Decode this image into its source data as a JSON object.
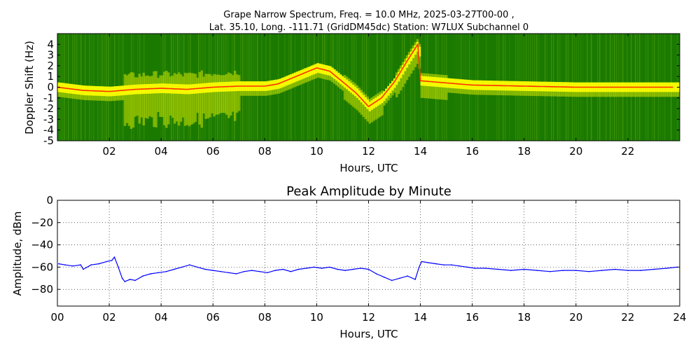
{
  "figure": {
    "title_line1": "Grape Narrow Spectrum, Freq. = 10.0 MHz, 2025-03-27T00-00 ,",
    "title_line2": "Lat.  35.10, Long. -111.71 (GridDM45dc) Station: W7LUX Subchannel 0"
  },
  "chart_data": [
    {
      "type": "heatmap",
      "title": "Grape Narrow Spectrum, Freq. = 10.0 MHz, 2025-03-27T00-00 , Lat.  35.10, Long. -111.71 (GridDM45dc) Station: W7LUX Subchannel 0",
      "xlabel": "Hours, UTC",
      "ylabel": "Doppler Shift (Hz)",
      "xlim": [
        0,
        24
      ],
      "ylim": [
        -5,
        5
      ],
      "xtick_values": [
        2,
        4,
        6,
        8,
        10,
        12,
        14,
        16,
        18,
        20,
        22
      ],
      "xtick_labels": [
        "02",
        "04",
        "06",
        "08",
        "10",
        "12",
        "14",
        "16",
        "18",
        "20",
        "22"
      ],
      "ytick_values": [
        4,
        3,
        2,
        1,
        0,
        -1,
        -2,
        -3,
        -4,
        -5
      ],
      "ytick_labels": [
        "4",
        "3",
        "2",
        "1",
        "0",
        "-1",
        "-2",
        "-3",
        "-4",
        "-5"
      ],
      "colors": [
        "#1a7a00",
        "#4a9a0a",
        "#c8e000",
        "#ffff00",
        "#ff3000"
      ],
      "grid": false,
      "peak_doppler_trace": {
        "hours": [
          0,
          1,
          2,
          3,
          4,
          5,
          6,
          7,
          8,
          8.5,
          9,
          9.5,
          10,
          10.5,
          11,
          11.5,
          12,
          12.5,
          13,
          13.5,
          13.9,
          14,
          15,
          16,
          18,
          20,
          22,
          23.8
        ],
        "doppler_hz": [
          0,
          -0.3,
          -0.4,
          -0.2,
          -0.1,
          -0.2,
          0,
          0.1,
          0.1,
          0.3,
          0.8,
          1.3,
          1.8,
          1.5,
          0.5,
          -0.5,
          -1.8,
          -1,
          0.5,
          2.5,
          4,
          0.6,
          0.4,
          0.2,
          0.1,
          0,
          0,
          0
        ]
      }
    },
    {
      "type": "line",
      "title": "Peak Amplitude by Minute",
      "xlabel": "Hours, UTC",
      "ylabel": "Amplitude, dBm",
      "xlim": [
        0,
        24
      ],
      "ylim": [
        -95,
        0
      ],
      "xtick_values": [
        0,
        2,
        4,
        6,
        8,
        10,
        12,
        14,
        16,
        18,
        20,
        22,
        24
      ],
      "xtick_labels": [
        "00",
        "02",
        "04",
        "06",
        "08",
        "10",
        "12",
        "14",
        "16",
        "18",
        "20",
        "22",
        "24"
      ],
      "ytick_values": [
        0,
        -20,
        -40,
        -60,
        -80
      ],
      "ytick_labels": [
        "0",
        "−20",
        "−40",
        "−60",
        "−80"
      ],
      "grid": true,
      "color": "#0000ff",
      "x": [
        0.05,
        0.3,
        0.6,
        0.9,
        1.0,
        1.3,
        1.6,
        1.9,
        2.1,
        2.2,
        2.35,
        2.5,
        2.6,
        2.8,
        3.0,
        3.3,
        3.6,
        3.9,
        4.2,
        4.5,
        4.8,
        5.1,
        5.4,
        5.7,
        6.0,
        6.3,
        6.6,
        6.9,
        7.2,
        7.5,
        7.8,
        8.1,
        8.4,
        8.7,
        9.0,
        9.3,
        9.6,
        9.9,
        10.2,
        10.5,
        10.8,
        11.1,
        11.4,
        11.7,
        12.0,
        12.3,
        12.6,
        12.9,
        13.2,
        13.5,
        13.8,
        13.95,
        14.05,
        14.3,
        14.6,
        14.9,
        15.2,
        15.5,
        15.8,
        16.1,
        16.5,
        17.0,
        17.5,
        18.0,
        18.5,
        19.0,
        19.5,
        20.0,
        20.5,
        21.0,
        21.5,
        22.0,
        22.5,
        23.0,
        23.5,
        23.9
      ],
      "y": [
        -57,
        -58,
        -59,
        -58,
        -62,
        -58,
        -57,
        -55,
        -54,
        -51,
        -60,
        -70,
        -73,
        -71,
        -72,
        -68,
        -66,
        -65,
        -64,
        -62,
        -60,
        -58,
        -60,
        -62,
        -63,
        -64,
        -65,
        -66,
        -64,
        -63,
        -64,
        -65,
        -63,
        -62,
        -64,
        -62,
        -61,
        -60,
        -61,
        -60,
        -62,
        -63,
        -62,
        -61,
        -62,
        -66,
        -69,
        -72,
        -70,
        -68,
        -71,
        -60,
        -55,
        -56,
        -57,
        -58,
        -58,
        -59,
        -60,
        -61,
        -61,
        -62,
        -63,
        -62,
        -63,
        -64,
        -63,
        -63,
        -64,
        -63,
        -62,
        -63,
        -63,
        -62,
        -61,
        -60
      ]
    }
  ]
}
